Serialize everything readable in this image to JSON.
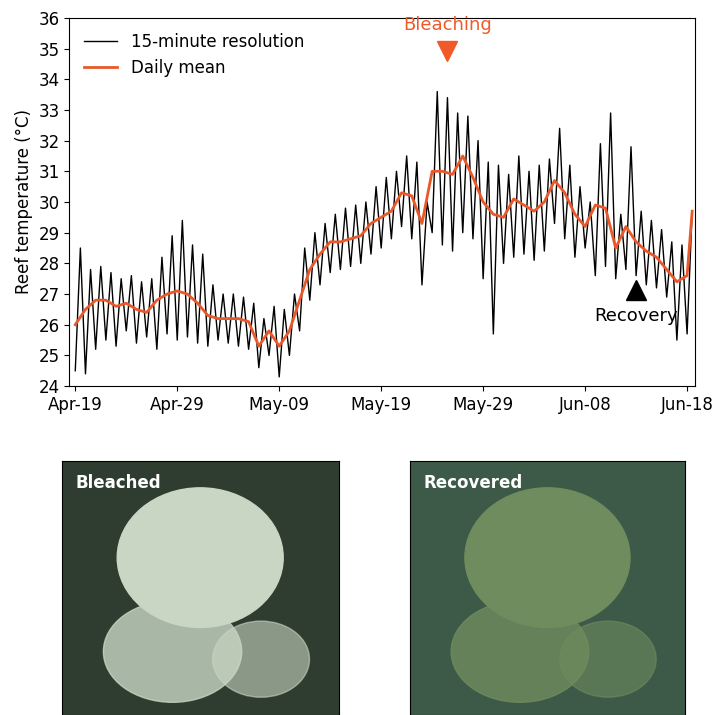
{
  "chart_data": {
    "type": "line",
    "y_label": "Reef temperature (°C)",
    "xlim": [
      -0.6,
      60.8
    ],
    "xticks": [
      {
        "value": 0,
        "label": "Apr-19"
      },
      {
        "value": 10,
        "label": "Apr-29"
      },
      {
        "value": 20,
        "label": "May-09"
      },
      {
        "value": 30,
        "label": "May-19"
      },
      {
        "value": 40,
        "label": "May-29"
      },
      {
        "value": 50,
        "label": "Jun-08"
      },
      {
        "value": 60,
        "label": "Jun-18"
      }
    ],
    "ylim": [
      24,
      36
    ],
    "yticks": [
      24,
      25,
      26,
      27,
      28,
      29,
      30,
      31,
      32,
      33,
      34,
      35,
      36
    ],
    "legend": "upper left",
    "series": [
      {
        "name": "15-minute resolution",
        "color": "#000000",
        "x": [
          0,
          0.5,
          1,
          1.5,
          2,
          2.5,
          3,
          3.5,
          4,
          4.5,
          5,
          5.5,
          6,
          6.5,
          7,
          7.5,
          8,
          8.5,
          9,
          9.5,
          10,
          10.5,
          11,
          11.5,
          12,
          12.5,
          13,
          13.5,
          14,
          14.5,
          15,
          15.5,
          16,
          16.5,
          17,
          17.5,
          18,
          18.5,
          19,
          19.5,
          20,
          20.5,
          21,
          21.5,
          22,
          22.5,
          23,
          23.5,
          24,
          24.5,
          25,
          25.5,
          26,
          26.5,
          27,
          27.5,
          28,
          28.5,
          29,
          29.5,
          30,
          30.5,
          31,
          31.5,
          32,
          32.5,
          33,
          33.5,
          34,
          34.5,
          35,
          35.5,
          36,
          36.5,
          37,
          37.5,
          38,
          38.5,
          39,
          39.5,
          40,
          40.5,
          41,
          41.5,
          42,
          42.5,
          43,
          43.5,
          44,
          44.5,
          45,
          45.5,
          46,
          46.5,
          47,
          47.5,
          48,
          48.5,
          49,
          49.5,
          50,
          50.5,
          51,
          51.5,
          52,
          52.5,
          53,
          53.5,
          54,
          54.5,
          55,
          55.5,
          56,
          56.5,
          57,
          57.5,
          58,
          58.5,
          59,
          59.5,
          60,
          60.5
        ],
        "values": [
          24.5,
          28.5,
          24.4,
          27.8,
          25.2,
          27.9,
          25.5,
          27.7,
          25.3,
          27.5,
          25.8,
          27.6,
          25.4,
          27.4,
          25.6,
          27.5,
          25.2,
          28.2,
          25.7,
          28.9,
          25.5,
          29.4,
          25.6,
          28.6,
          25.4,
          28.3,
          25.3,
          27.3,
          25.5,
          27.0,
          25.4,
          27.0,
          25.3,
          26.9,
          25.2,
          26.7,
          24.6,
          26.2,
          25.0,
          26.6,
          24.3,
          26.5,
          25.0,
          27.0,
          25.8,
          28.5,
          26.8,
          29.0,
          27.3,
          29.3,
          27.7,
          29.6,
          27.8,
          29.8,
          27.9,
          29.9,
          28.0,
          30.0,
          28.3,
          30.5,
          28.5,
          30.8,
          28.8,
          31.0,
          29.2,
          31.5,
          28.8,
          31.3,
          27.3,
          30.0,
          29.0,
          33.6,
          28.6,
          33.4,
          28.4,
          32.9,
          29.0,
          32.8,
          28.8,
          32.0,
          27.5,
          31.3,
          25.7,
          31.2,
          28.0,
          30.9,
          28.2,
          31.5,
          28.3,
          31.0,
          28.1,
          31.2,
          28.4,
          31.4,
          29.3,
          32.4,
          28.8,
          31.2,
          28.2,
          30.5,
          28.5,
          30.0,
          27.6,
          31.9,
          27.9,
          32.9,
          27.5,
          29.6,
          27.8,
          31.8,
          27.6,
          29.7,
          27.3,
          29.4,
          27.2,
          29.1,
          26.9,
          28.7,
          25.5,
          28.6,
          25.7,
          29.7
        ]
      },
      {
        "name": "Daily mean",
        "color": "#e8582b",
        "x": [
          0,
          1,
          2,
          3,
          4,
          5,
          6,
          7,
          8,
          9,
          10,
          11,
          12,
          13,
          14,
          15,
          16,
          17,
          18,
          19,
          20,
          21,
          22,
          23,
          24,
          25,
          26,
          27,
          28,
          29,
          30,
          31,
          32,
          33,
          34,
          35,
          36,
          37,
          38,
          39,
          40,
          41,
          42,
          43,
          44,
          45,
          46,
          47,
          48,
          49,
          50,
          51,
          52,
          53,
          54,
          55,
          56,
          57,
          58,
          59,
          60,
          60.5
        ],
        "values": [
          26.0,
          26.5,
          26.8,
          26.8,
          26.6,
          26.7,
          26.5,
          26.4,
          26.8,
          27.0,
          27.1,
          27.0,
          26.7,
          26.3,
          26.2,
          26.2,
          26.2,
          26.1,
          25.3,
          25.8,
          25.3,
          25.8,
          26.8,
          27.8,
          28.3,
          28.7,
          28.7,
          28.8,
          28.9,
          29.3,
          29.5,
          29.7,
          30.3,
          30.2,
          29.3,
          31.0,
          31.0,
          30.9,
          31.5,
          30.8,
          30.0,
          29.6,
          29.5,
          30.1,
          29.9,
          29.7,
          30.0,
          30.7,
          30.3,
          29.6,
          29.2,
          29.9,
          29.8,
          28.5,
          29.2,
          28.7,
          28.4,
          28.2,
          27.8,
          27.4,
          27.6,
          29.7
        ]
      }
    ],
    "annotations": [
      {
        "text": "Bleaching",
        "x": 36.5,
        "color": "#f05a28",
        "marker": "v"
      },
      {
        "text": "Recovery",
        "x": 55,
        "color": "#000000",
        "marker": "^"
      }
    ]
  },
  "photos": [
    {
      "label": "Bleached"
    },
    {
      "label": "Recovered"
    }
  ]
}
